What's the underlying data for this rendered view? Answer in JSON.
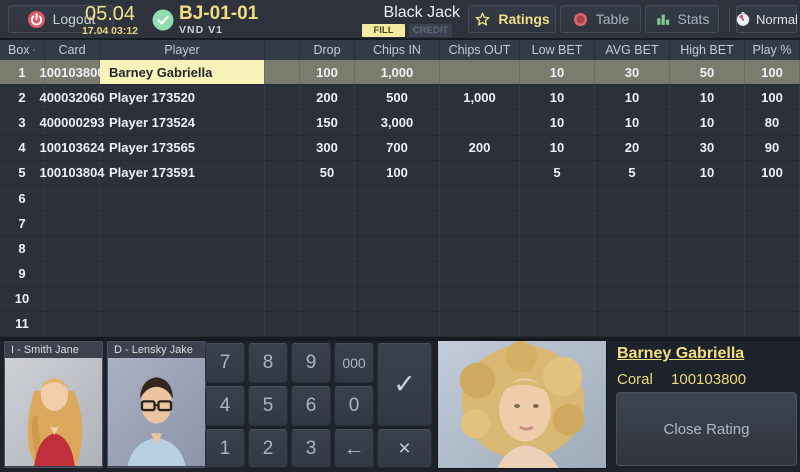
{
  "top_bar": {
    "logout_label": "Logout",
    "date_primary": "05.04",
    "date_secondary": "17.04 03:12",
    "table_id": "BJ-01-01",
    "table_sub": "VND  V1",
    "game_name": "Black Jack",
    "fill_label": "FILL",
    "credit_label": "CREDIT",
    "nav": {
      "ratings": "Ratings",
      "table": "Table",
      "stats": "Stats",
      "normal": "Normal"
    }
  },
  "table": {
    "sort_indicator": "·",
    "columns": [
      "Box",
      "Card",
      "Player",
      "Drop",
      "Chips IN",
      "Chips OUT",
      "Low BET",
      "AVG BET",
      "High BET",
      "Play %"
    ],
    "rows": [
      {
        "box": "1",
        "card": "100103800",
        "player": "Barney Gabriella",
        "drop": "100",
        "chips_in": "1,000",
        "chips_out": "",
        "low_bet": "10",
        "avg_bet": "30",
        "high_bet": "50",
        "play_pct": "100",
        "selected": true
      },
      {
        "box": "2",
        "card": "400032060",
        "player": "Player 173520",
        "drop": "200",
        "chips_in": "500",
        "chips_out": "1,000",
        "low_bet": "10",
        "avg_bet": "10",
        "high_bet": "10",
        "play_pct": "100",
        "selected": false
      },
      {
        "box": "3",
        "card": "400000293",
        "player": "Player 173524",
        "drop": "150",
        "chips_in": "3,000",
        "chips_out": "",
        "low_bet": "10",
        "avg_bet": "10",
        "high_bet": "10",
        "play_pct": "80",
        "selected": false
      },
      {
        "box": "4",
        "card": "100103624",
        "player": "Player 173565",
        "drop": "300",
        "chips_in": "700",
        "chips_out": "200",
        "low_bet": "10",
        "avg_bet": "20",
        "high_bet": "30",
        "play_pct": "90",
        "selected": false
      },
      {
        "box": "5",
        "card": "100103804",
        "player": "Player 173591",
        "drop": "50",
        "chips_in": "100",
        "chips_out": "",
        "low_bet": "5",
        "avg_bet": "5",
        "high_bet": "10",
        "play_pct": "100",
        "selected": false
      },
      {
        "box": "6",
        "card": "",
        "player": "",
        "drop": "",
        "chips_in": "",
        "chips_out": "",
        "low_bet": "",
        "avg_bet": "",
        "high_bet": "",
        "play_pct": "",
        "selected": false
      },
      {
        "box": "7",
        "card": "",
        "player": "",
        "drop": "",
        "chips_in": "",
        "chips_out": "",
        "low_bet": "",
        "avg_bet": "",
        "high_bet": "",
        "play_pct": "",
        "selected": false
      },
      {
        "box": "8",
        "card": "",
        "player": "",
        "drop": "",
        "chips_in": "",
        "chips_out": "",
        "low_bet": "",
        "avg_bet": "",
        "high_bet": "",
        "play_pct": "",
        "selected": false
      },
      {
        "box": "9",
        "card": "",
        "player": "",
        "drop": "",
        "chips_in": "",
        "chips_out": "",
        "low_bet": "",
        "avg_bet": "",
        "high_bet": "",
        "play_pct": "",
        "selected": false
      },
      {
        "box": "10",
        "card": "",
        "player": "",
        "drop": "",
        "chips_in": "",
        "chips_out": "",
        "low_bet": "",
        "avg_bet": "",
        "high_bet": "",
        "play_pct": "",
        "selected": false
      },
      {
        "box": "11",
        "card": "",
        "player": "",
        "drop": "",
        "chips_in": "",
        "chips_out": "",
        "low_bet": "",
        "avg_bet": "",
        "high_bet": "",
        "play_pct": "",
        "selected": false
      }
    ]
  },
  "dealers": [
    {
      "label": "I - Smith Jane"
    },
    {
      "label": "D - Lensky Jake"
    }
  ],
  "keypad": {
    "keys": [
      "7",
      "8",
      "9",
      "000",
      "4",
      "5",
      "6",
      "0",
      "1",
      "2",
      "3"
    ],
    "backspace": "←",
    "confirm": "✓",
    "cancel": "×"
  },
  "rating_panel": {
    "player_name": "Barney Gabriella",
    "tier": "Coral",
    "card_number": "100103800",
    "close_button": "Close Rating"
  },
  "colors": {
    "accent_yellow": "#f2dd7e",
    "highlight_cell": "#f8f3b8",
    "selected_row": "#7a7d6e",
    "status_green": "#92dcb0",
    "alert_red": "#e05866",
    "stats_green": "#7fcb92",
    "panel_dark": "#2d323d",
    "row_dark": "#2b303a"
  }
}
